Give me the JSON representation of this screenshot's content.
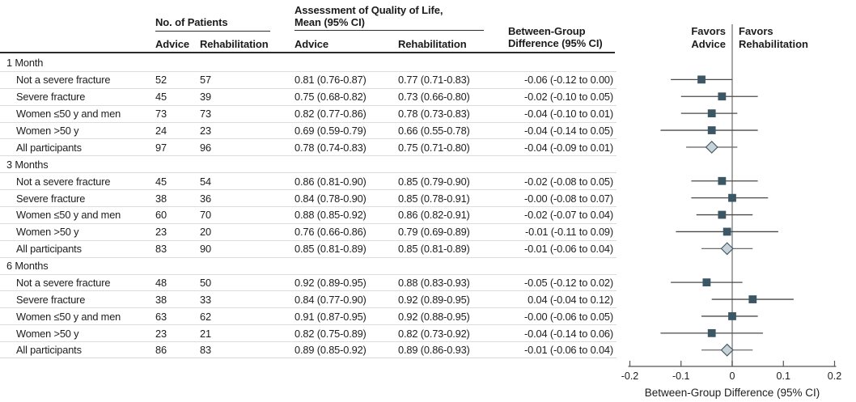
{
  "headers": {
    "patients_group": "No. of Patients",
    "qol_group_line1": "Assessment of Quality of Life,",
    "qol_group_line2": "Mean (95% CI)",
    "advice": "Advice",
    "rehabilitation": "Rehabilitation",
    "between_line1": "Between-Group",
    "between_line2": "Difference (95% CI)"
  },
  "colors": {
    "marker": "#3b5765",
    "summary_fill": "#c9d2d6",
    "ci_line": "#4a4a4a",
    "summary_ci_line": "#6e6e6e",
    "zero_line": "#8a8a8a",
    "axis": "#555555",
    "text": "#1d1d1d"
  },
  "chart_data": {
    "type": "forest",
    "xlabel": "Between-Group Difference (95% CI)",
    "xlim": [
      -0.2,
      0.2
    ],
    "xticks": [
      {
        "v": -0.2,
        "label": "-0.2"
      },
      {
        "v": -0.1,
        "label": "-0.1"
      },
      {
        "v": 0,
        "label": "0"
      },
      {
        "v": 0.1,
        "label": "0.1"
      },
      {
        "v": 0.2,
        "label": "0.2"
      }
    ],
    "favors_left": [
      "Favors",
      "Advice"
    ],
    "favors_right": [
      "Favors",
      "Rehabilitation"
    ],
    "rows": [
      {
        "kind": "section",
        "label": "1 Month"
      },
      {
        "kind": "data",
        "label": "Not a severe fracture",
        "advice_n": "52",
        "rehab_n": "57",
        "advice_mean": "0.81 (0.76-0.87)",
        "rehab_mean": "0.77 (0.71-0.83)",
        "diff": "-0.06 (-0.12 to 0.00)",
        "est": -0.06,
        "lo": -0.12,
        "hi": 0.0
      },
      {
        "kind": "data",
        "label": "Severe fracture",
        "advice_n": "45",
        "rehab_n": "39",
        "advice_mean": "0.75 (0.68-0.82)",
        "rehab_mean": "0.73 (0.66-0.80)",
        "diff": "-0.02 (-0.10 to 0.05)",
        "est": -0.02,
        "lo": -0.1,
        "hi": 0.05
      },
      {
        "kind": "data",
        "label": "Women ≤50 y and men",
        "advice_n": "73",
        "rehab_n": "73",
        "advice_mean": "0.82 (0.77-0.86)",
        "rehab_mean": "0.78 (0.73-0.83)",
        "diff": "-0.04 (-0.10 to 0.01)",
        "est": -0.04,
        "lo": -0.1,
        "hi": 0.01
      },
      {
        "kind": "data",
        "label": "Women >50 y",
        "advice_n": "24",
        "rehab_n": "23",
        "advice_mean": "0.69 (0.59-0.79)",
        "rehab_mean": "0.66 (0.55-0.78)",
        "diff": "-0.04 (-0.14 to 0.05)",
        "est": -0.04,
        "lo": -0.14,
        "hi": 0.05
      },
      {
        "kind": "summary",
        "label": "All participants",
        "advice_n": "97",
        "rehab_n": "96",
        "advice_mean": "0.78 (0.74-0.83)",
        "rehab_mean": "0.75 (0.71-0.80)",
        "diff": "-0.04 (-0.09 to 0.01)",
        "est": -0.04,
        "lo": -0.09,
        "hi": 0.01
      },
      {
        "kind": "section",
        "label": "3 Months"
      },
      {
        "kind": "data",
        "label": "Not a severe fracture",
        "advice_n": "45",
        "rehab_n": "54",
        "advice_mean": "0.86 (0.81-0.90)",
        "rehab_mean": "0.85 (0.79-0.90)",
        "diff": "-0.02 (-0.08 to 0.05)",
        "est": -0.02,
        "lo": -0.08,
        "hi": 0.05
      },
      {
        "kind": "data",
        "label": "Severe fracture",
        "advice_n": "38",
        "rehab_n": "36",
        "advice_mean": "0.84 (0.78-0.90)",
        "rehab_mean": "0.85 (0.78-0.91)",
        "diff": "-0.00 (-0.08 to 0.07)",
        "est": 0.0,
        "lo": -0.08,
        "hi": 0.07
      },
      {
        "kind": "data",
        "label": "Women ≤50 y and men",
        "advice_n": "60",
        "rehab_n": "70",
        "advice_mean": "0.88 (0.85-0.92)",
        "rehab_mean": "0.86 (0.82-0.91)",
        "diff": "-0.02 (-0.07 to 0.04)",
        "est": -0.02,
        "lo": -0.07,
        "hi": 0.04
      },
      {
        "kind": "data",
        "label": "Women >50 y",
        "advice_n": "23",
        "rehab_n": "20",
        "advice_mean": "0.76 (0.66-0.86)",
        "rehab_mean": "0.79 (0.69-0.89)",
        "diff": "-0.01 (-0.11 to 0.09)",
        "est": -0.01,
        "lo": -0.11,
        "hi": 0.09
      },
      {
        "kind": "summary",
        "label": "All participants",
        "advice_n": "83",
        "rehab_n": "90",
        "advice_mean": "0.85 (0.81-0.89)",
        "rehab_mean": "0.85 (0.81-0.89)",
        "diff": "-0.01 (-0.06 to 0.04)",
        "est": -0.01,
        "lo": -0.06,
        "hi": 0.04
      },
      {
        "kind": "section",
        "label": "6 Months"
      },
      {
        "kind": "data",
        "label": "Not a severe fracture",
        "advice_n": "48",
        "rehab_n": "50",
        "advice_mean": "0.92 (0.89-0.95)",
        "rehab_mean": "0.88 (0.83-0.93)",
        "diff": "-0.05 (-0.12 to 0.02)",
        "est": -0.05,
        "lo": -0.12,
        "hi": 0.02
      },
      {
        "kind": "data",
        "label": "Severe fracture",
        "advice_n": "38",
        "rehab_n": "33",
        "advice_mean": "0.84 (0.77-0.90)",
        "rehab_mean": "0.92 (0.89-0.95)",
        "diff": "0.04 (-0.04 to 0.12)",
        "est": 0.04,
        "lo": -0.04,
        "hi": 0.12
      },
      {
        "kind": "data",
        "label": "Women ≤50 y and men",
        "advice_n": "63",
        "rehab_n": "62",
        "advice_mean": "0.91 (0.87-0.95)",
        "rehab_mean": "0.92 (0.88-0.95)",
        "diff": "-0.00 (-0.06 to 0.05)",
        "est": 0.0,
        "lo": -0.06,
        "hi": 0.05
      },
      {
        "kind": "data",
        "label": "Women >50 y",
        "advice_n": "23",
        "rehab_n": "21",
        "advice_mean": "0.82 (0.75-0.89)",
        "rehab_mean": "0.82 (0.73-0.92)",
        "diff": "-0.04 (-0.14 to 0.06)",
        "est": -0.04,
        "lo": -0.14,
        "hi": 0.06
      },
      {
        "kind": "summary",
        "label": "All participants",
        "advice_n": "86",
        "rehab_n": "83",
        "advice_mean": "0.89 (0.85-0.92)",
        "rehab_mean": "0.89 (0.86-0.93)",
        "diff": "-0.01 (-0.06 to 0.04)",
        "est": -0.01,
        "lo": -0.06,
        "hi": 0.04
      }
    ]
  }
}
